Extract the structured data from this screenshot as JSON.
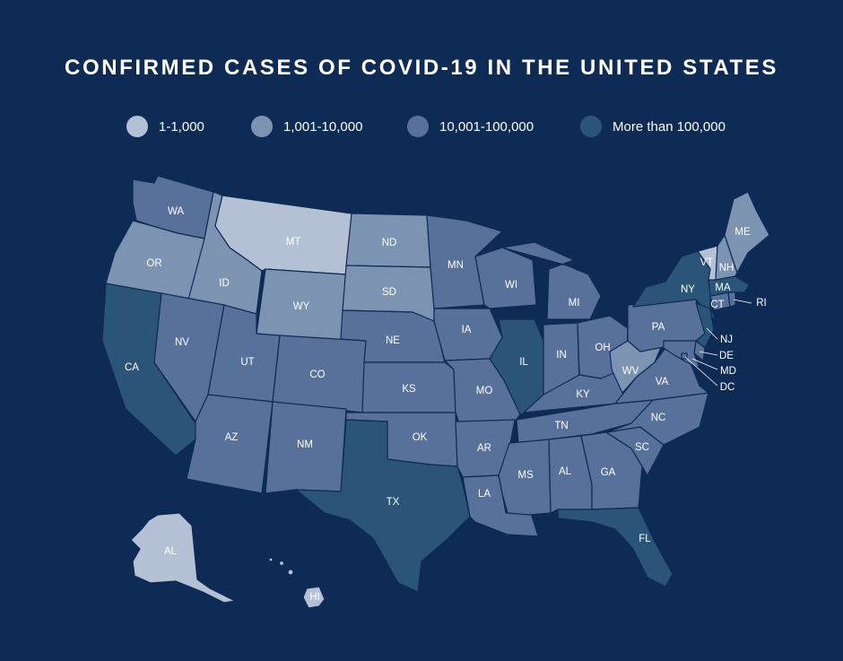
{
  "title": "CONFIRMED CASES OF COVID-19 IN THE UNITED STATES",
  "legend": [
    {
      "label": "1-1,000",
      "color": "#b4c0d3"
    },
    {
      "label": "1,001-10,000",
      "color": "#7c93b2"
    },
    {
      "label": "10,001-100,000",
      "color": "#58719a"
    },
    {
      "label": "More than 100,000",
      "color": "#2b5479"
    }
  ],
  "categories": {
    "c1": "1-1,000",
    "c2": "1,001-10,000",
    "c3": "10,001-100,000",
    "c4": "More than 100,000"
  },
  "states": [
    {
      "abbr": "WA",
      "cat": "c3"
    },
    {
      "abbr": "OR",
      "cat": "c2"
    },
    {
      "abbr": "CA",
      "cat": "c4"
    },
    {
      "abbr": "ID",
      "cat": "c2"
    },
    {
      "abbr": "NV",
      "cat": "c3"
    },
    {
      "abbr": "MT",
      "cat": "c1"
    },
    {
      "abbr": "WY",
      "cat": "c2"
    },
    {
      "abbr": "UT",
      "cat": "c3"
    },
    {
      "abbr": "AZ",
      "cat": "c3"
    },
    {
      "abbr": "CO",
      "cat": "c3"
    },
    {
      "abbr": "NM",
      "cat": "c3"
    },
    {
      "abbr": "ND",
      "cat": "c2"
    },
    {
      "abbr": "SD",
      "cat": "c2"
    },
    {
      "abbr": "NE",
      "cat": "c3"
    },
    {
      "abbr": "KS",
      "cat": "c3"
    },
    {
      "abbr": "OK",
      "cat": "c3"
    },
    {
      "abbr": "TX",
      "cat": "c4"
    },
    {
      "abbr": "MN",
      "cat": "c3"
    },
    {
      "abbr": "IA",
      "cat": "c3"
    },
    {
      "abbr": "MO",
      "cat": "c3"
    },
    {
      "abbr": "AR",
      "cat": "c3"
    },
    {
      "abbr": "LA",
      "cat": "c3"
    },
    {
      "abbr": "WI",
      "cat": "c3"
    },
    {
      "abbr": "IL",
      "cat": "c4"
    },
    {
      "abbr": "MI",
      "cat": "c3"
    },
    {
      "abbr": "IN",
      "cat": "c3"
    },
    {
      "abbr": "OH",
      "cat": "c3"
    },
    {
      "abbr": "KY",
      "cat": "c3"
    },
    {
      "abbr": "TN",
      "cat": "c3"
    },
    {
      "abbr": "MS",
      "cat": "c3"
    },
    {
      "abbr": "AL",
      "cat": "c3"
    },
    {
      "abbr": "GA",
      "cat": "c3"
    },
    {
      "abbr": "FL",
      "cat": "c4"
    },
    {
      "abbr": "SC",
      "cat": "c3"
    },
    {
      "abbr": "NC",
      "cat": "c3"
    },
    {
      "abbr": "VA",
      "cat": "c3"
    },
    {
      "abbr": "WV",
      "cat": "c2"
    },
    {
      "abbr": "PA",
      "cat": "c3"
    },
    {
      "abbr": "NY",
      "cat": "c4"
    },
    {
      "abbr": "NJ",
      "cat": "c4"
    },
    {
      "abbr": "DE",
      "cat": "c3"
    },
    {
      "abbr": "MD",
      "cat": "c3"
    },
    {
      "abbr": "DC",
      "cat": "c3"
    },
    {
      "abbr": "CT",
      "cat": "c3"
    },
    {
      "abbr": "RI",
      "cat": "c3"
    },
    {
      "abbr": "MA",
      "cat": "c4"
    },
    {
      "abbr": "VT",
      "cat": "c1"
    },
    {
      "abbr": "NH",
      "cat": "c2"
    },
    {
      "abbr": "ME",
      "cat": "c2"
    },
    {
      "abbr": "AK",
      "label": "AL",
      "cat": "c1"
    },
    {
      "abbr": "HI",
      "cat": "c1"
    }
  ]
}
